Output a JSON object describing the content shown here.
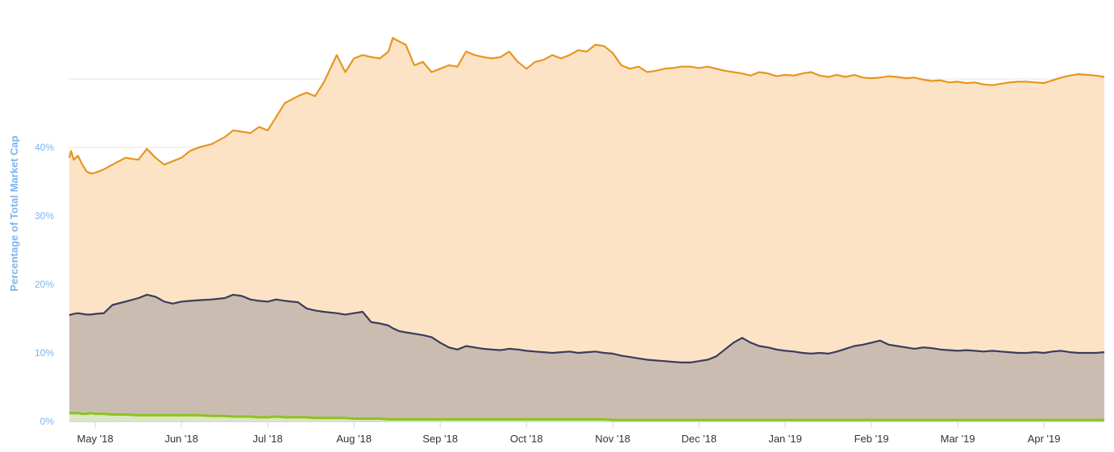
{
  "chart_data": {
    "type": "area",
    "title": "",
    "xlabel": "",
    "ylabel": "Percentage of Total Market Cap",
    "ylim": [
      0,
      58
    ],
    "y_ticks": [
      0,
      10,
      20,
      30,
      40
    ],
    "y_tick_labels": [
      "0%",
      "10%",
      "20%",
      "30%",
      "40%"
    ],
    "grid": true,
    "x_tick_labels": [
      "May '18",
      "Jun '18",
      "Jul '18",
      "Aug '18",
      "Sep '18",
      "Oct '18",
      "Nov '18",
      "Dec '18",
      "Jan '19",
      "Feb '19",
      "Mar '19",
      "Apr '19"
    ],
    "x_ticks_month_index": [
      1,
      2,
      3,
      4,
      5,
      6,
      7,
      8,
      9,
      10,
      11,
      12
    ],
    "x_range_month_index": [
      0.7,
      12.7
    ],
    "x": [
      0.7,
      0.72,
      0.75,
      0.8,
      0.85,
      0.9,
      0.95,
      1.0,
      1.1,
      1.2,
      1.35,
      1.5,
      1.6,
      1.7,
      1.8,
      1.9,
      2.0,
      2.1,
      2.2,
      2.35,
      2.5,
      2.6,
      2.7,
      2.8,
      2.9,
      3.0,
      3.1,
      3.2,
      3.35,
      3.45,
      3.55,
      3.65,
      3.8,
      3.9,
      4.0,
      4.1,
      4.2,
      4.3,
      4.4,
      4.45,
      4.52,
      4.6,
      4.7,
      4.8,
      4.9,
      5.0,
      5.1,
      5.2,
      5.3,
      5.4,
      5.5,
      5.6,
      5.7,
      5.8,
      5.9,
      6.0,
      6.1,
      6.2,
      6.3,
      6.4,
      6.5,
      6.6,
      6.7,
      6.8,
      6.9,
      7.0,
      7.1,
      7.2,
      7.3,
      7.4,
      7.5,
      7.6,
      7.7,
      7.8,
      7.9,
      8.0,
      8.1,
      8.2,
      8.3,
      8.4,
      8.5,
      8.6,
      8.7,
      8.8,
      8.9,
      9.0,
      9.1,
      9.2,
      9.3,
      9.4,
      9.5,
      9.6,
      9.7,
      9.8,
      9.9,
      10.0,
      10.1,
      10.2,
      10.3,
      10.4,
      10.5,
      10.6,
      10.7,
      10.8,
      10.9,
      11.0,
      11.1,
      11.2,
      11.3,
      11.4,
      11.5,
      11.6,
      11.7,
      11.8,
      11.9,
      12.0,
      12.1,
      12.2,
      12.3,
      12.4,
      12.5,
      12.6,
      12.7
    ],
    "series": [
      {
        "color": "#f7a35c",
        "line_color": "#e8951f",
        "fill_color": "#fce3c6",
        "values": [
          38.5,
          39.5,
          38.2,
          38.8,
          37.5,
          36.5,
          36.2,
          36.3,
          36.8,
          37.5,
          38.5,
          38.2,
          39.8,
          38.5,
          37.5,
          38.0,
          38.5,
          39.5,
          40.0,
          40.5,
          41.5,
          42.5,
          42.3,
          42.1,
          43.0,
          42.5,
          44.5,
          46.5,
          47.5,
          48.0,
          47.5,
          49.5,
          53.5,
          51.0,
          53.0,
          53.5,
          53.2,
          53.0,
          54.0,
          56.0,
          55.5,
          55.0,
          52.0,
          52.5,
          51.0,
          51.5,
          52.0,
          51.8,
          54.0,
          53.5,
          53.2,
          53.0,
          53.2,
          54.0,
          52.5,
          51.5,
          52.5,
          52.8,
          53.5,
          53.0,
          53.5,
          54.2,
          54.0,
          55.0,
          54.8,
          53.8,
          52.0,
          51.5,
          51.8,
          51.0,
          51.2,
          51.5,
          51.6,
          51.8,
          51.8,
          51.6,
          51.8,
          51.5,
          51.2,
          51.0,
          50.8,
          50.5,
          51.0,
          50.8,
          50.4,
          50.6,
          50.5,
          50.8,
          51.0,
          50.5,
          50.3,
          50.6,
          50.3,
          50.6,
          50.2,
          50.1,
          50.2,
          50.4,
          50.3,
          50.1,
          50.2,
          49.9,
          49.7,
          49.8,
          49.5,
          49.6,
          49.4,
          49.5,
          49.2,
          49.1,
          49.3,
          49.5,
          49.6,
          49.6,
          49.5,
          49.4,
          49.8,
          50.2,
          50.5,
          50.7,
          50.6,
          50.5,
          50.3
        ]
      },
      {
        "color": "#434348",
        "line_color": "#3b3b5c",
        "fill_color": "#cbbcb1",
        "values": [
          15.5,
          15.6,
          15.7,
          15.8,
          15.7,
          15.6,
          15.6,
          15.7,
          15.8,
          17.0,
          17.5,
          18.0,
          18.5,
          18.2,
          17.5,
          17.2,
          17.5,
          17.6,
          17.7,
          17.8,
          18.0,
          18.5,
          18.3,
          17.8,
          17.6,
          17.5,
          17.8,
          17.6,
          17.4,
          16.5,
          16.2,
          16.0,
          15.8,
          15.6,
          15.8,
          16.0,
          14.5,
          14.3,
          14.0,
          13.6,
          13.2,
          13.0,
          12.8,
          12.6,
          12.3,
          11.5,
          10.8,
          10.5,
          11.0,
          10.8,
          10.6,
          10.5,
          10.4,
          10.6,
          10.5,
          10.3,
          10.2,
          10.1,
          10.0,
          10.1,
          10.2,
          10.0,
          10.1,
          10.2,
          10.0,
          9.9,
          9.6,
          9.4,
          9.2,
          9.0,
          8.9,
          8.8,
          8.7,
          8.6,
          8.6,
          8.8,
          9.0,
          9.5,
          10.5,
          11.5,
          12.2,
          11.5,
          11.0,
          10.8,
          10.5,
          10.3,
          10.2,
          10.0,
          9.9,
          10.0,
          9.9,
          10.2,
          10.6,
          11.0,
          11.2,
          11.5,
          11.8,
          11.2,
          11.0,
          10.8,
          10.6,
          10.8,
          10.7,
          10.5,
          10.4,
          10.3,
          10.4,
          10.3,
          10.2,
          10.3,
          10.2,
          10.1,
          10.0,
          10.0,
          10.1,
          10.0,
          10.2,
          10.3,
          10.1,
          10.0,
          10.0,
          10.0,
          10.1
        ]
      },
      {
        "color": "#90ed7d",
        "line_color": "#8dc21f",
        "fill_color": "#dbe6c3",
        "values": [
          1.2,
          1.2,
          1.2,
          1.2,
          1.1,
          1.1,
          1.2,
          1.1,
          1.1,
          1.0,
          1.0,
          0.9,
          0.9,
          0.9,
          0.9,
          0.9,
          0.9,
          0.9,
          0.9,
          0.8,
          0.8,
          0.7,
          0.7,
          0.7,
          0.6,
          0.6,
          0.7,
          0.6,
          0.6,
          0.6,
          0.5,
          0.5,
          0.5,
          0.5,
          0.4,
          0.4,
          0.4,
          0.4,
          0.3,
          0.3,
          0.3,
          0.3,
          0.3,
          0.3,
          0.3,
          0.3,
          0.3,
          0.3,
          0.3,
          0.3,
          0.3,
          0.3,
          0.3,
          0.3,
          0.3,
          0.3,
          0.3,
          0.3,
          0.3,
          0.3,
          0.3,
          0.3,
          0.3,
          0.3,
          0.3,
          0.2,
          0.2,
          0.2,
          0.2,
          0.2,
          0.2,
          0.2,
          0.2,
          0.2,
          0.2,
          0.2,
          0.2,
          0.2,
          0.2,
          0.2,
          0.2,
          0.2,
          0.2,
          0.2,
          0.2,
          0.2,
          0.2,
          0.2,
          0.2,
          0.2,
          0.2,
          0.2,
          0.2,
          0.2,
          0.2,
          0.2,
          0.2,
          0.2,
          0.2,
          0.2,
          0.2,
          0.2,
          0.2,
          0.2,
          0.2,
          0.2,
          0.2,
          0.2,
          0.2,
          0.2,
          0.2,
          0.2,
          0.2,
          0.2,
          0.2,
          0.2,
          0.2,
          0.2,
          0.2,
          0.2,
          0.2,
          0.2,
          0.2
        ]
      }
    ]
  }
}
